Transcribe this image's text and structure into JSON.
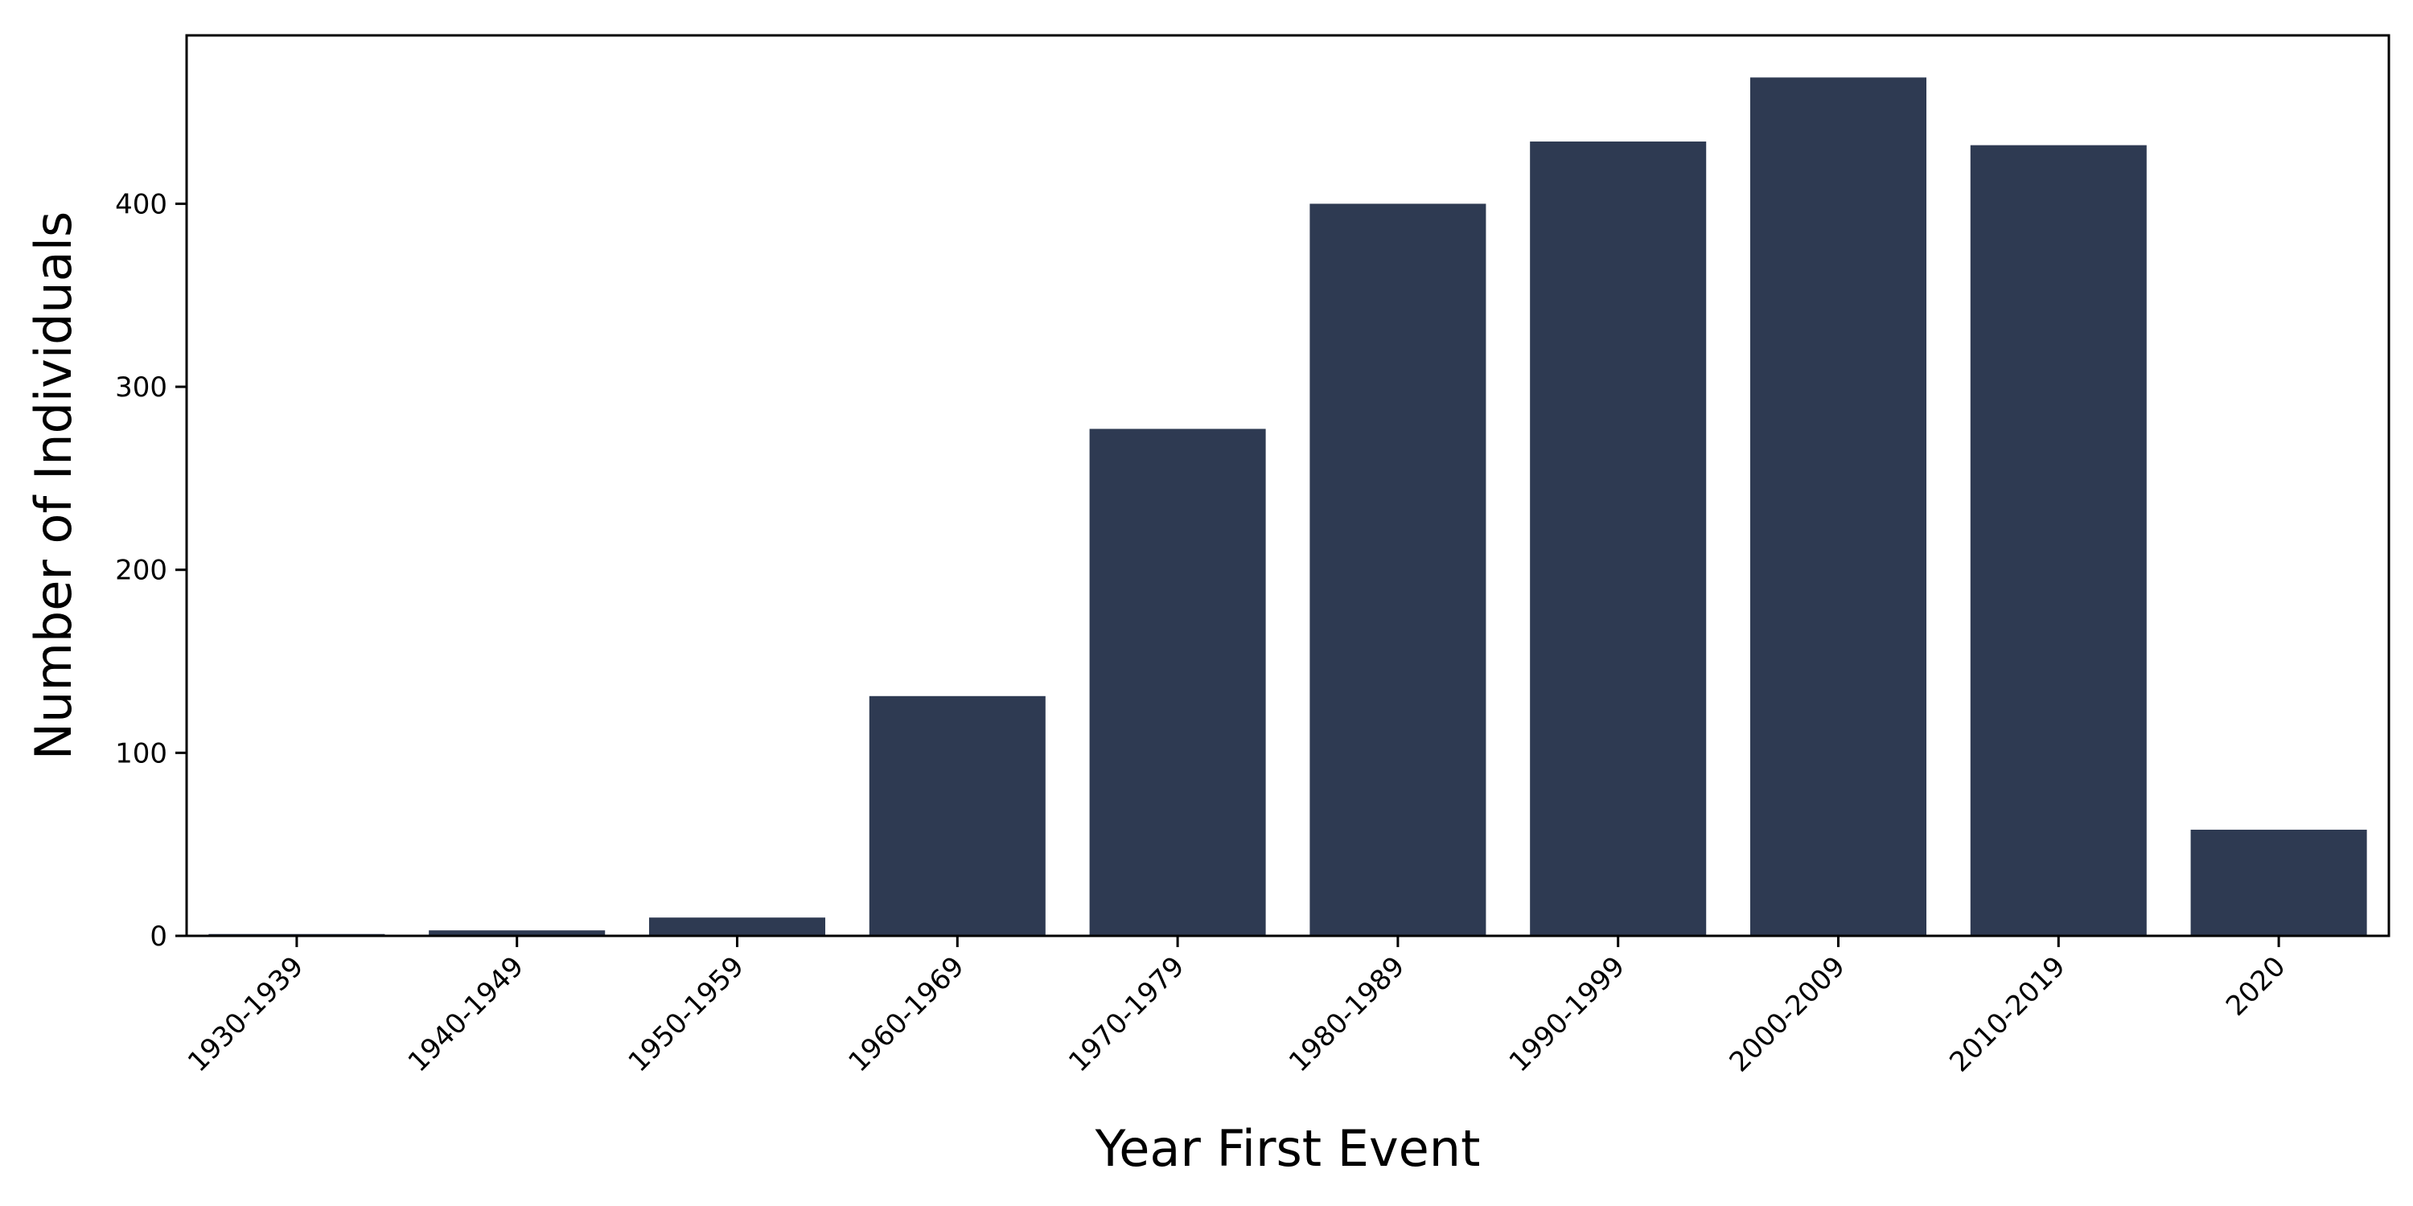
{
  "chart_data": {
    "type": "bar",
    "title": "",
    "xlabel": "Year First Event",
    "ylabel": "Number of Individuals",
    "categories": [
      "1930-1939",
      "1940-1949",
      "1950-1959",
      "1960-1969",
      "1970-1979",
      "1980-1989",
      "1990-1999",
      "2000-2009",
      "2010-2019",
      "2020"
    ],
    "values": [
      1,
      3,
      10,
      131,
      277,
      400,
      434,
      469,
      432,
      58
    ],
    "ylim": [
      0,
      492
    ],
    "yticks": [
      0,
      100,
      200,
      300,
      400
    ],
    "grid": false,
    "legend": "none",
    "bar_color": "#2e3a52"
  }
}
